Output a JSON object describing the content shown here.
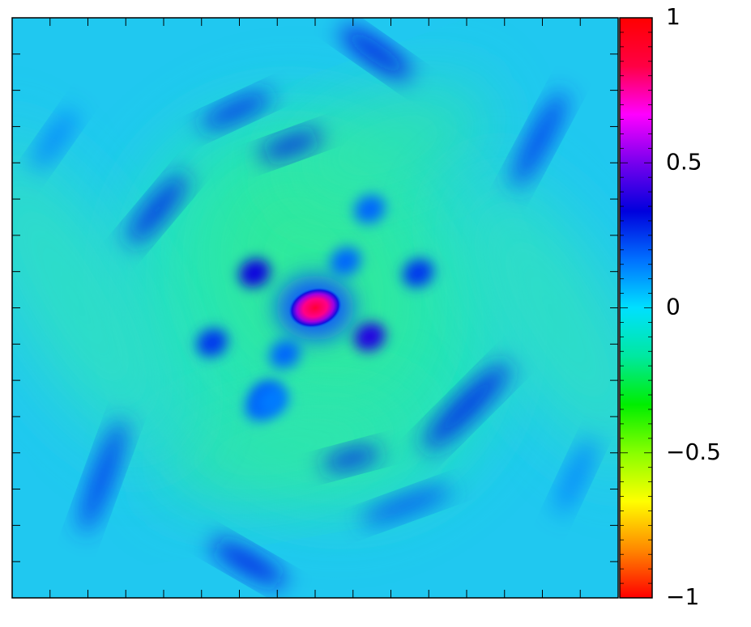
{
  "chart_data": {
    "type": "heatmap",
    "title": "",
    "xlabel": "",
    "ylabel": "",
    "grid": false,
    "colormap": [
      "#ff0000",
      "#ff8800",
      "#ffff00",
      "#88ff00",
      "#00ee00",
      "#00e8a0",
      "#00e0ff",
      "#0070ff",
      "#0000dd",
      "#7700ee",
      "#ff00ff",
      "#ff0044",
      "#ff0000"
    ],
    "colorbar": {
      "range": [
        -1,
        1
      ],
      "tick_values": [
        1,
        0.5,
        0,
        -0.5,
        -1
      ],
      "tick_labels": [
        "1",
        "0.5",
        "0",
        "−0.5",
        "−1"
      ]
    },
    "features": [
      {
        "kind": "central-peak",
        "x": 0.5,
        "y": 0.5,
        "value": 1.0
      },
      {
        "kind": "blob",
        "x": 0.4,
        "y": 0.44,
        "value": 0.35
      },
      {
        "kind": "blob",
        "x": 0.59,
        "y": 0.55,
        "value": 0.38
      },
      {
        "kind": "blob",
        "x": 0.55,
        "y": 0.42,
        "value": 0.18
      },
      {
        "kind": "blob",
        "x": 0.45,
        "y": 0.58,
        "value": 0.18
      },
      {
        "kind": "blob",
        "x": 0.33,
        "y": 0.56,
        "value": 0.25
      },
      {
        "kind": "blob",
        "x": 0.67,
        "y": 0.44,
        "value": 0.25
      },
      {
        "kind": "blob",
        "x": 0.59,
        "y": 0.33,
        "value": 0.18
      },
      {
        "kind": "blob",
        "x": 0.41,
        "y": 0.67,
        "value": 0.18
      },
      {
        "kind": "blob",
        "x": 0.42,
        "y": 0.65,
        "value": 0.2
      },
      {
        "kind": "blob",
        "x": 0.43,
        "y": 0.66,
        "value": 0.15
      },
      {
        "kind": "streak",
        "x": 0.6,
        "y": 0.06,
        "value": 0.32
      },
      {
        "kind": "streak",
        "x": 0.37,
        "y": 0.16,
        "value": 0.28
      },
      {
        "kind": "streak",
        "x": 0.46,
        "y": 0.22,
        "value": 0.3
      },
      {
        "kind": "streak",
        "x": 0.24,
        "y": 0.33,
        "value": 0.28
      },
      {
        "kind": "streak",
        "x": 0.87,
        "y": 0.21,
        "value": 0.25
      },
      {
        "kind": "streak",
        "x": 0.07,
        "y": 0.21,
        "value": 0.15
      },
      {
        "kind": "streak",
        "x": 0.75,
        "y": 0.67,
        "value": 0.28
      },
      {
        "kind": "streak",
        "x": 0.56,
        "y": 0.76,
        "value": 0.28
      },
      {
        "kind": "streak",
        "x": 0.65,
        "y": 0.84,
        "value": 0.22
      },
      {
        "kind": "streak",
        "x": 0.15,
        "y": 0.79,
        "value": 0.25
      },
      {
        "kind": "streak",
        "x": 0.39,
        "y": 0.94,
        "value": 0.3
      },
      {
        "kind": "streak",
        "x": 0.93,
        "y": 0.79,
        "value": 0.15
      }
    ]
  }
}
